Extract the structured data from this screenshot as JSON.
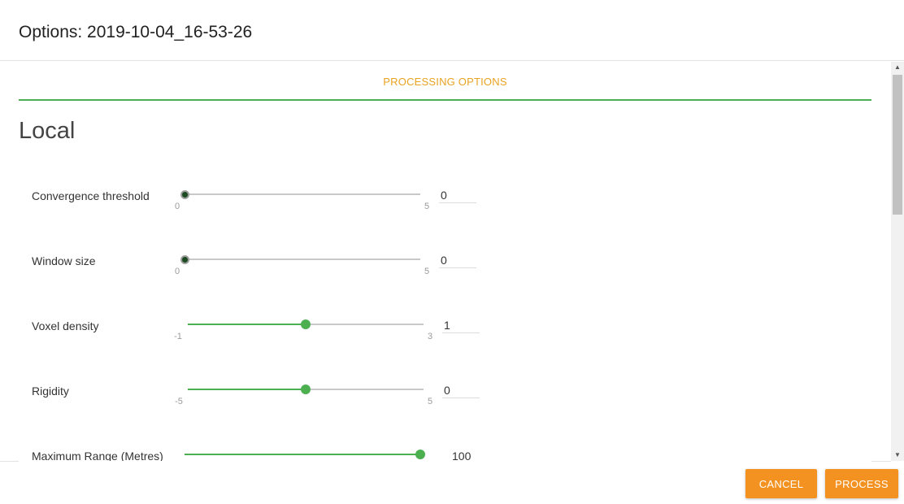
{
  "dialog": {
    "title": "Options: 2019-10-04_16-53-26"
  },
  "tabs": [
    {
      "label": "PROCESSING OPTIONS"
    }
  ],
  "section": {
    "title": "Local"
  },
  "sliders": [
    {
      "label": "Convergence threshold",
      "min": "0",
      "max": "5",
      "value": "0",
      "level": 0
    },
    {
      "label": "Window size",
      "min": "0",
      "max": "5",
      "value": "0",
      "level": 0
    },
    {
      "label": "Voxel density",
      "min": "-1",
      "max": "3",
      "value": "1",
      "level": 0.5
    },
    {
      "label": "Rigidity",
      "min": "-5",
      "max": "5",
      "value": "0",
      "level": 0.5
    },
    {
      "label": "Maximum Range (Metres)",
      "value": "100",
      "level": 1
    }
  ],
  "footer": {
    "cancel_label": "CANCEL",
    "process_label": "PROCESS"
  },
  "scrollbar": {
    "up_icon": "▲",
    "down_icon": "▼"
  },
  "colors": {
    "accent_green": "#4caf50",
    "tab_orange": "#e8a322",
    "button_orange": "#f39221"
  }
}
